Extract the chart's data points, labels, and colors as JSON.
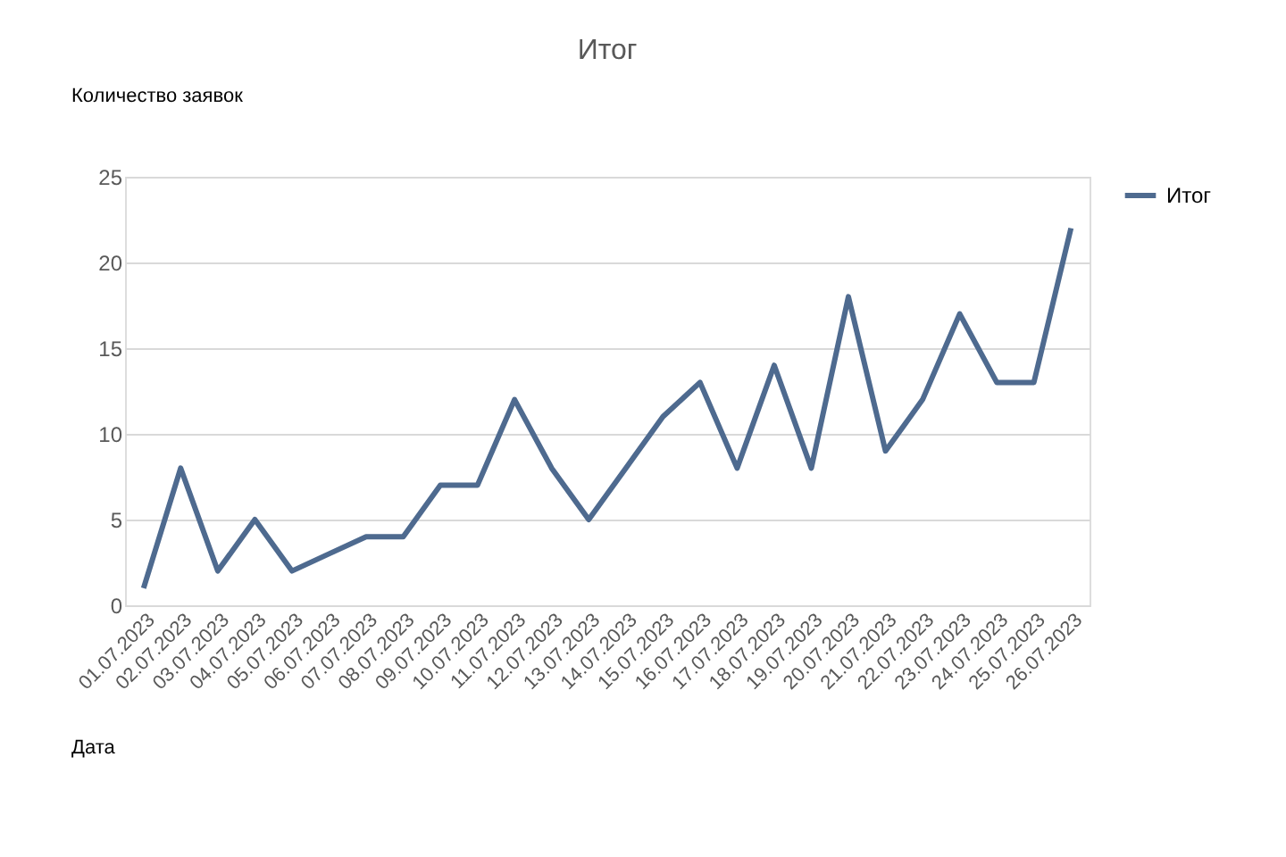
{
  "chart_data": {
    "type": "line",
    "title": "Итог",
    "annotations": [
      "Количество заявок",
      "Дата"
    ],
    "categories": [
      "01.07.2023",
      "02.07.2023",
      "03.07.2023",
      "04.07.2023",
      "05.07.2023",
      "06.07.2023",
      "07.07.2023",
      "08.07.2023",
      "09.07.2023",
      "10.07.2023",
      "11.07.2023",
      "12.07.2023",
      "13.07.2023",
      "14.07.2023",
      "15.07.2023",
      "16.07.2023",
      "17.07.2023",
      "18.07.2023",
      "19.07.2023",
      "20.07.2023",
      "21.07.2023",
      "22.07.2023",
      "23.07.2023",
      "24.07.2023",
      "25.07.2023",
      "26.07.2023"
    ],
    "series": [
      {
        "name": "Итог",
        "color": "#4e6a8f",
        "values": [
          1,
          8,
          2,
          5,
          2,
          3,
          4,
          4,
          7,
          7,
          12,
          8,
          5,
          8,
          11,
          13,
          8,
          14,
          8,
          18,
          9,
          12,
          17,
          13,
          13,
          22
        ]
      }
    ],
    "ylim": [
      0,
      25
    ],
    "yticks": [
      0,
      5,
      10,
      15,
      20,
      25
    ],
    "grid": "y",
    "legend": "right",
    "marker": "none",
    "line_style": "solid"
  }
}
